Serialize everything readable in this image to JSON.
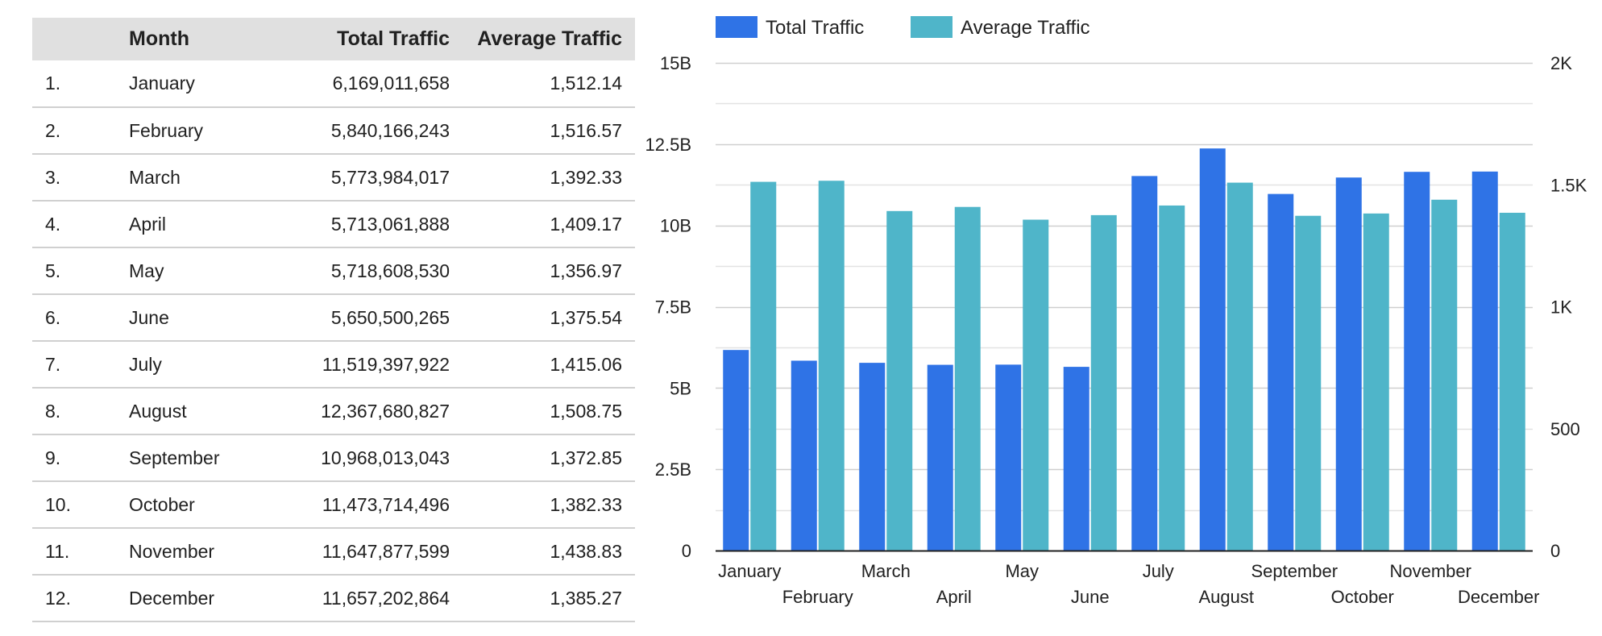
{
  "table": {
    "headers": {
      "index": "",
      "month": "Month",
      "total": "Total Traffic",
      "average": "Average Traffic"
    },
    "rows": [
      {
        "index": "1.",
        "month": "January",
        "total": "6,169,011,658",
        "average": "1,512.14"
      },
      {
        "index": "2.",
        "month": "February",
        "total": "5,840,166,243",
        "average": "1,516.57"
      },
      {
        "index": "3.",
        "month": "March",
        "total": "5,773,984,017",
        "average": "1,392.33"
      },
      {
        "index": "4.",
        "month": "April",
        "total": "5,713,061,888",
        "average": "1,409.17"
      },
      {
        "index": "5.",
        "month": "May",
        "total": "5,718,608,530",
        "average": "1,356.97"
      },
      {
        "index": "6.",
        "month": "June",
        "total": "5,650,500,265",
        "average": "1,375.54"
      },
      {
        "index": "7.",
        "month": "July",
        "total": "11,519,397,922",
        "average": "1,415.06"
      },
      {
        "index": "8.",
        "month": "August",
        "total": "12,367,680,827",
        "average": "1,508.75"
      },
      {
        "index": "9.",
        "month": "September",
        "total": "10,968,013,043",
        "average": "1,372.85"
      },
      {
        "index": "10.",
        "month": "October",
        "total": "11,473,714,496",
        "average": "1,382.33"
      },
      {
        "index": "11.",
        "month": "November",
        "total": "11,647,877,599",
        "average": "1,438.83"
      },
      {
        "index": "12.",
        "month": "December",
        "total": "11,657,202,864",
        "average": "1,385.27"
      }
    ]
  },
  "chart_data": {
    "type": "bar",
    "title": "",
    "xlabel": "",
    "ylabel": "",
    "legend_position": "top-left",
    "grid": true,
    "categories": [
      "January",
      "February",
      "March",
      "April",
      "May",
      "June",
      "July",
      "August",
      "September",
      "October",
      "November",
      "December"
    ],
    "series": [
      {
        "name": "Total Traffic",
        "axis": "left",
        "color": "#2f73e6",
        "values": [
          6169011658,
          5840166243,
          5773984017,
          5713061888,
          5718608530,
          5650500265,
          11519397922,
          12367680827,
          10968013043,
          11473714496,
          11647877599,
          11657202864
        ]
      },
      {
        "name": "Average Traffic",
        "axis": "right",
        "color": "#4fb5c9",
        "values": [
          1512.14,
          1516.57,
          1392.33,
          1409.17,
          1356.97,
          1375.54,
          1415.06,
          1508.75,
          1372.85,
          1382.33,
          1438.83,
          1385.27
        ]
      }
    ],
    "y_left": {
      "range": [
        0,
        15000000000
      ],
      "ticks": [
        0,
        2500000000,
        5000000000,
        7500000000,
        10000000000,
        12500000000,
        15000000000
      ],
      "tick_labels": [
        "0",
        "2.5B",
        "5B",
        "7.5B",
        "10B",
        "12.5B",
        "15B"
      ]
    },
    "y_right": {
      "range": [
        0,
        2000
      ],
      "ticks": [
        0,
        500,
        1000,
        1500,
        2000
      ],
      "tick_labels": [
        "0",
        "500",
        "1K",
        "1.5K",
        "2K"
      ]
    }
  }
}
